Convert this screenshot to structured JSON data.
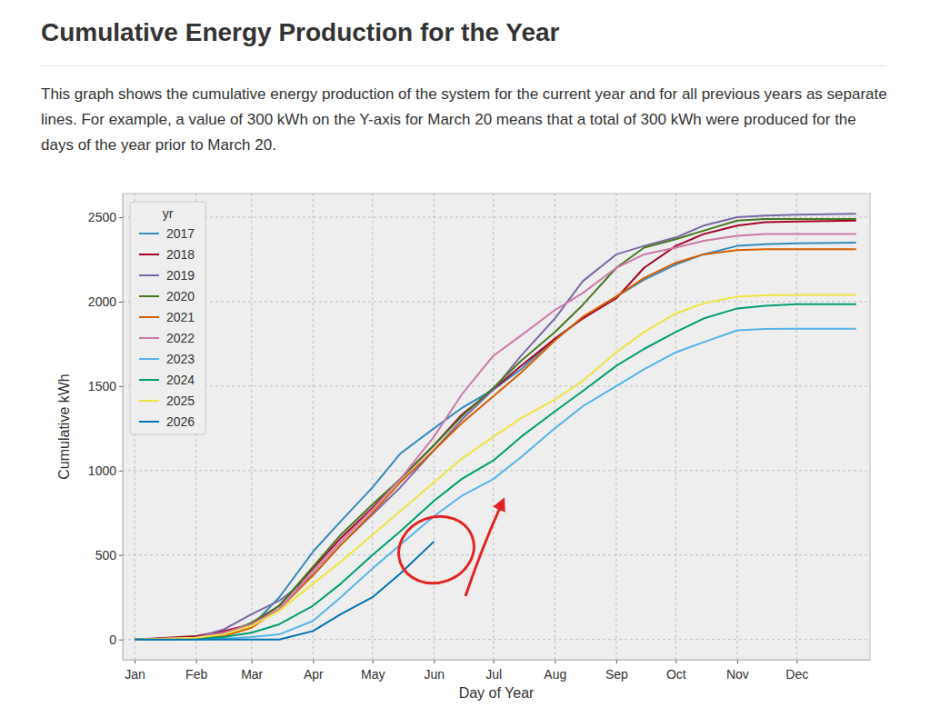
{
  "chart_data": {
    "type": "line",
    "title": "Cumulative Energy Production for the Year",
    "subtitle": "This graph shows the cumulative energy production of the system for the current year and for all previous years as separate lines. For example, a value of 300 kWh on the Y-axis for March 20 means that a total of 300 kWh were produced for the days of the year prior to March 20.",
    "x_label": "Day of Year",
    "y_label": "Cumulative kWh",
    "legend_title": "yr",
    "legend": "upper left",
    "grid": true,
    "xlim": [
      -5,
      372
    ],
    "xticks": [
      {
        "value": 1,
        "label": "Jan"
      },
      {
        "value": 32,
        "label": "Feb"
      },
      {
        "value": 60,
        "label": "Mar"
      },
      {
        "value": 91,
        "label": "Apr"
      },
      {
        "value": 121,
        "label": "May"
      },
      {
        "value": 152,
        "label": "Jun"
      },
      {
        "value": 182,
        "label": "Jul"
      },
      {
        "value": 213,
        "label": "Aug"
      },
      {
        "value": 244,
        "label": "Sep"
      },
      {
        "value": 274,
        "label": "Oct"
      },
      {
        "value": 305,
        "label": "Nov"
      },
      {
        "value": 335,
        "label": "Dec"
      }
    ],
    "ylim": [
      -120,
      2640
    ],
    "yticks": [
      0,
      500,
      1000,
      1500,
      2000,
      2500
    ],
    "x": [
      1,
      32,
      46,
      60,
      74,
      91,
      105,
      121,
      135,
      152,
      166,
      182,
      196,
      213,
      227,
      244,
      258,
      274,
      288,
      305,
      319,
      335,
      365
    ],
    "series": [
      {
        "name": "2017",
        "color": "#348ABD",
        "values": [
          0,
          10,
          30,
          80,
          250,
          520,
          700,
          900,
          1100,
          1250,
          1370,
          1480,
          1600,
          1780,
          1900,
          2030,
          2130,
          2220,
          2280,
          2330,
          2340,
          2345,
          2350
        ]
      },
      {
        "name": "2018",
        "color": "#A60628",
        "values": [
          0,
          20,
          50,
          90,
          200,
          420,
          600,
          780,
          950,
          1150,
          1330,
          1480,
          1620,
          1780,
          1900,
          2020,
          2200,
          2330,
          2400,
          2450,
          2470,
          2475,
          2480
        ]
      },
      {
        "name": "2019",
        "color": "#7A68A6",
        "values": [
          0,
          10,
          60,
          150,
          230,
          380,
          560,
          740,
          900,
          1120,
          1300,
          1480,
          1680,
          1900,
          2120,
          2280,
          2330,
          2380,
          2450,
          2500,
          2510,
          2515,
          2520
        ]
      },
      {
        "name": "2020",
        "color": "#467821",
        "values": [
          0,
          5,
          30,
          100,
          200,
          430,
          620,
          800,
          950,
          1150,
          1320,
          1490,
          1650,
          1820,
          1980,
          2200,
          2320,
          2370,
          2420,
          2480,
          2490,
          2490,
          2490
        ]
      },
      {
        "name": "2021",
        "color": "#D55E00",
        "values": [
          0,
          5,
          20,
          70,
          180,
          380,
          560,
          750,
          930,
          1120,
          1280,
          1440,
          1580,
          1770,
          1910,
          2030,
          2140,
          2230,
          2280,
          2305,
          2310,
          2310,
          2310
        ]
      },
      {
        "name": "2022",
        "color": "#CC79A7",
        "values": [
          0,
          10,
          40,
          90,
          180,
          400,
          580,
          770,
          950,
          1200,
          1450,
          1680,
          1800,
          1950,
          2050,
          2200,
          2280,
          2320,
          2360,
          2390,
          2400,
          2400,
          2400
        ]
      },
      {
        "name": "2023",
        "color": "#56B4E9",
        "values": [
          0,
          0,
          5,
          15,
          30,
          110,
          250,
          420,
          560,
          730,
          850,
          950,
          1080,
          1250,
          1380,
          1500,
          1600,
          1700,
          1760,
          1830,
          1838,
          1840,
          1840
        ]
      },
      {
        "name": "2024",
        "color": "#009E73",
        "values": [
          0,
          5,
          15,
          40,
          90,
          200,
          330,
          500,
          640,
          820,
          950,
          1060,
          1200,
          1350,
          1470,
          1620,
          1720,
          1820,
          1900,
          1960,
          1975,
          1985,
          1985
        ]
      },
      {
        "name": "2025",
        "color": "#F0E442",
        "values": [
          0,
          10,
          30,
          80,
          170,
          330,
          460,
          620,
          760,
          930,
          1070,
          1200,
          1310,
          1420,
          1530,
          1700,
          1820,
          1930,
          1990,
          2030,
          2038,
          2040,
          2040
        ]
      },
      {
        "name": "2026",
        "color": "#0072B2",
        "values": [
          0,
          0,
          0,
          0,
          0,
          50,
          150,
          250,
          390,
          580,
          null,
          null,
          null,
          null,
          null,
          null,
          null,
          null,
          null,
          null,
          null,
          null,
          null
        ]
      }
    ]
  }
}
